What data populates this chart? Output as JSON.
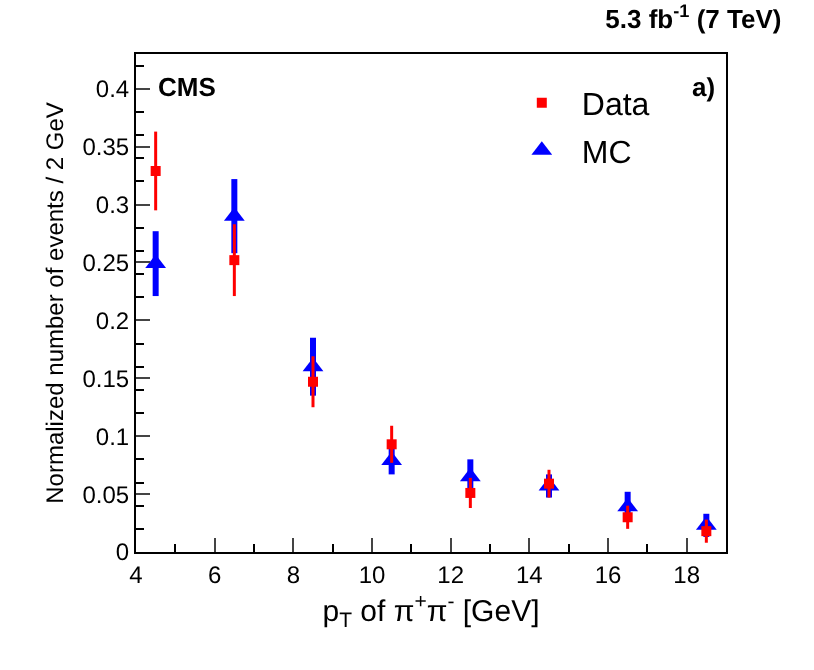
{
  "chart_data": {
    "type": "scatter",
    "title": "5.3 fb$^{-1}$ (7 TeV)",
    "xlabel": "p$_{T}$ of π$^{+}$π$^{-}$ [GeV]",
    "ylabel": "Normalized number of events / 2 GeV",
    "annotations": [
      "CMS",
      "a)"
    ],
    "x": [
      4.5,
      6.5,
      8.5,
      10.5,
      12.5,
      14.5,
      16.5,
      18.5
    ],
    "series": [
      {
        "name": "Data",
        "color": "#ff0000",
        "marker": "square",
        "values": [
          0.329,
          0.252,
          0.147,
          0.093,
          0.051,
          0.059,
          0.03,
          0.018
        ],
        "errors": [
          0.034,
          0.031,
          0.022,
          0.016,
          0.013,
          0.012,
          0.01,
          0.01
        ]
      },
      {
        "name": "MC",
        "color": "#0000ff",
        "marker": "triangle",
        "values": [
          0.249,
          0.29,
          0.16,
          0.079,
          0.065,
          0.057,
          0.039,
          0.023
        ],
        "errors": [
          0.028,
          0.032,
          0.025,
          0.012,
          0.015,
          0.01,
          0.013,
          0.01
        ]
      }
    ],
    "xlim": [
      4,
      19
    ],
    "xticks": [
      4,
      6,
      8,
      10,
      12,
      14,
      16,
      18
    ],
    "ylim": [
      0,
      0.43
    ],
    "yticks": [
      0,
      0.05,
      0.1,
      0.15,
      0.2,
      0.25,
      0.3,
      0.35,
      0.4
    ],
    "grid": false,
    "legend": "top right"
  }
}
